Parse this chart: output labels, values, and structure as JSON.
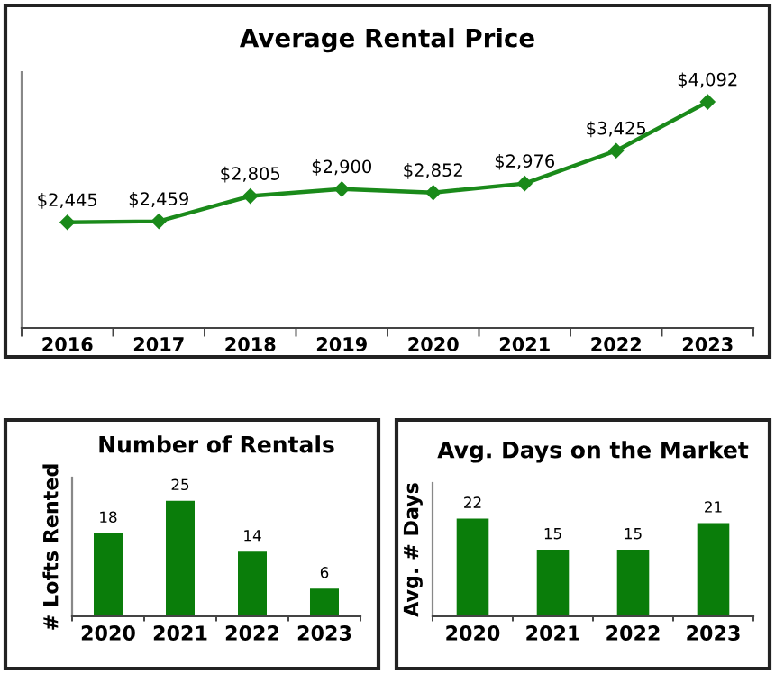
{
  "chart_data": [
    {
      "type": "line",
      "title": "Average Rental Price",
      "categories": [
        "2016",
        "2017",
        "2018",
        "2019",
        "2020",
        "2021",
        "2022",
        "2023"
      ],
      "series": [
        {
          "color": "#1a8a1a",
          "values": [
            2445,
            2459,
            2805,
            2900,
            2852,
            2976,
            3425,
            4092
          ],
          "value_labels": [
            "$2,445",
            "$2,459",
            "$2,805",
            "$2,900",
            "$2,852",
            "$2,976",
            "$3,425",
            "$4,092"
          ]
        }
      ],
      "ylim": [
        1000,
        4500
      ],
      "marker": "diamond",
      "line_style": "solid",
      "grid": false,
      "legend": false
    },
    {
      "type": "bar",
      "title": "Number of Rentals",
      "ylabel": "# Lofts Rented",
      "categories": [
        "2020",
        "2021",
        "2022",
        "2023"
      ],
      "series": [
        {
          "color": "#0a7d0a",
          "values": [
            18,
            25,
            14,
            6
          ]
        }
      ],
      "ylim": [
        0,
        30
      ],
      "data_labels": true,
      "grid": false,
      "legend": false
    },
    {
      "type": "bar",
      "title": "Avg. Days on the Market",
      "ylabel": "Avg. # Days",
      "categories": [
        "2020",
        "2021",
        "2022",
        "2023"
      ],
      "series": [
        {
          "color": "#0a7d0a",
          "values": [
            22,
            15,
            15,
            21
          ]
        }
      ],
      "ylim": [
        0,
        30
      ],
      "data_labels": true,
      "grid": false,
      "legend": false
    }
  ]
}
